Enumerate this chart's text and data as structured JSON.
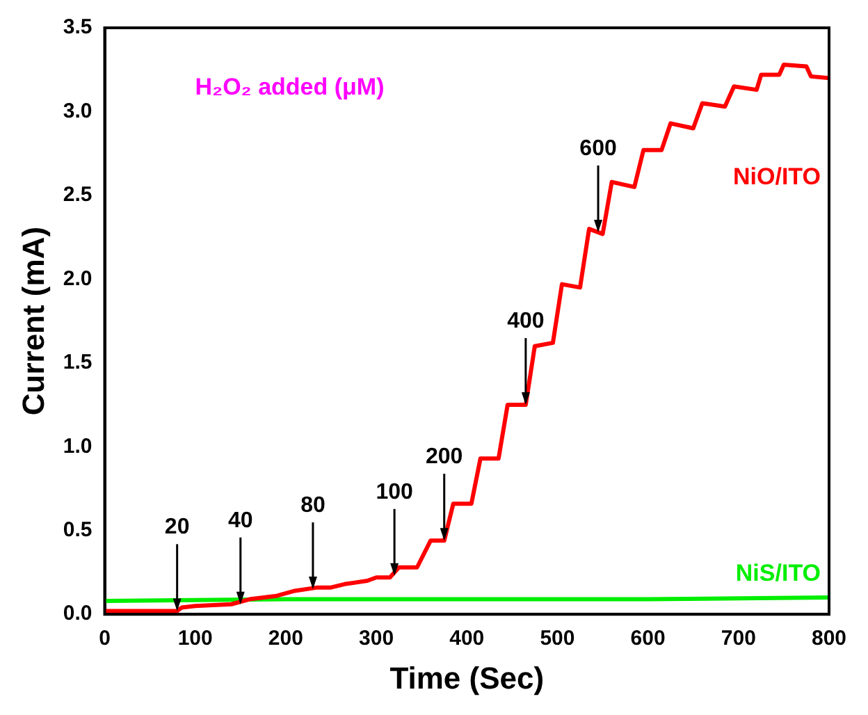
{
  "chart_data": {
    "type": "line",
    "xlabel": "Time (Sec)",
    "ylabel": "Current (mA)",
    "xlim": [
      0,
      800
    ],
    "ylim": [
      0,
      3.5
    ],
    "xticks": [
      0,
      100,
      200,
      300,
      400,
      500,
      600,
      700,
      800
    ],
    "yticks": [
      {
        "value": 0,
        "label": "0.0"
      },
      0.5,
      {
        "value": 1,
        "label": "1.0"
      },
      1.5,
      {
        "value": 2,
        "label": "2.0"
      },
      2.5,
      {
        "value": 3,
        "label": "3.0"
      },
      3.5
    ],
    "grid": false,
    "legend": false,
    "marker": "none",
    "line_style": "solid",
    "series": [
      {
        "name": "NiO/ITO",
        "color": "#ff0000",
        "x": [
          0,
          80,
          85,
          100,
          140,
          160,
          190,
          210,
          235,
          250,
          265,
          290,
          300,
          315,
          325,
          345,
          360,
          375,
          385,
          405,
          415,
          435,
          445,
          465,
          475,
          495,
          505,
          525,
          535,
          550,
          560,
          585,
          595,
          615,
          625,
          650,
          660,
          685,
          695,
          720,
          725,
          745,
          750,
          775,
          780,
          800
        ],
        "values": [
          0.02,
          0.02,
          0.04,
          0.05,
          0.06,
          0.09,
          0.11,
          0.14,
          0.16,
          0.16,
          0.18,
          0.2,
          0.22,
          0.22,
          0.28,
          0.28,
          0.44,
          0.44,
          0.66,
          0.66,
          0.93,
          0.93,
          1.25,
          1.25,
          1.6,
          1.62,
          1.97,
          1.95,
          2.3,
          2.27,
          2.58,
          2.55,
          2.77,
          2.77,
          2.93,
          2.9,
          3.05,
          3.03,
          3.15,
          3.13,
          3.22,
          3.22,
          3.28,
          3.27,
          3.21,
          3.2
        ]
      },
      {
        "name": "NiS/ITO",
        "color": "#00ee00",
        "x": [
          0,
          200,
          400,
          600,
          800
        ],
        "values": [
          0.08,
          0.09,
          0.09,
          0.09,
          0.1
        ]
      }
    ],
    "annotations": [
      "H₂O₂ added (μM)",
      {
        "text": "20",
        "x": 80,
        "y": 0.02
      },
      {
        "text": "40",
        "x": 150,
        "y": 0.06
      },
      {
        "text": "80",
        "x": 230,
        "y": 0.15
      },
      {
        "text": "100",
        "x": 320,
        "y": 0.23
      },
      {
        "text": "200",
        "x": 375,
        "y": 0.44
      },
      {
        "text": "400",
        "x": 465,
        "y": 1.25
      },
      {
        "text": "600",
        "x": 545,
        "y": 2.28
      }
    ]
  }
}
